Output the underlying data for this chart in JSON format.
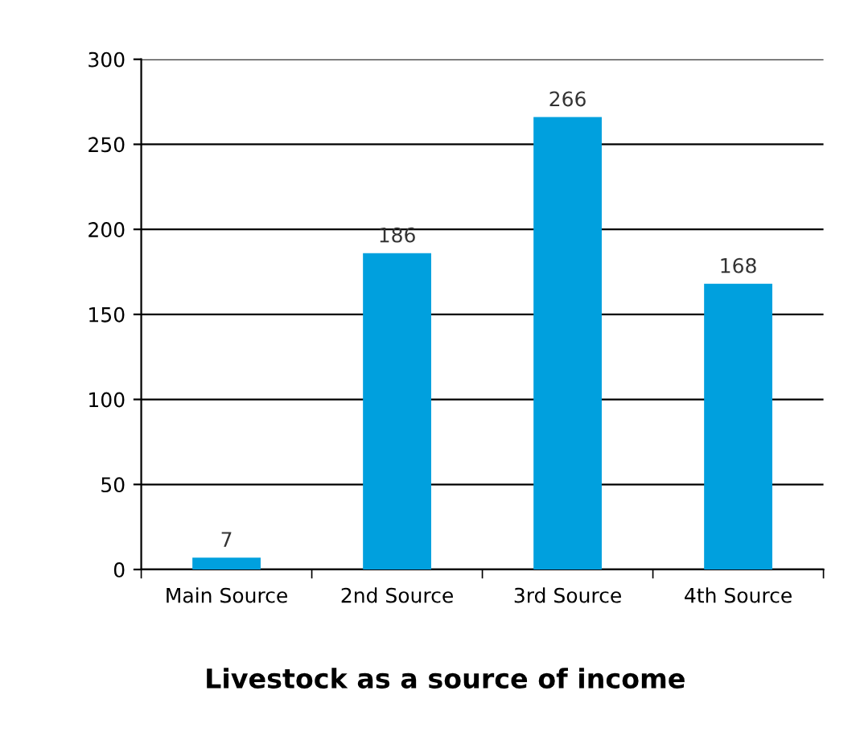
{
  "chart_data": {
    "type": "bar",
    "title": "Livestock as a source of income",
    "categories": [
      "Main Source",
      "2nd Source",
      "3rd Source",
      "4th Source"
    ],
    "values": [
      7,
      186,
      266,
      168
    ],
    "color": "#00a0de",
    "ylim": [
      0,
      300
    ],
    "yticks": [
      0,
      50,
      100,
      150,
      200,
      250,
      300
    ],
    "grid": "y",
    "data_labels": true
  }
}
